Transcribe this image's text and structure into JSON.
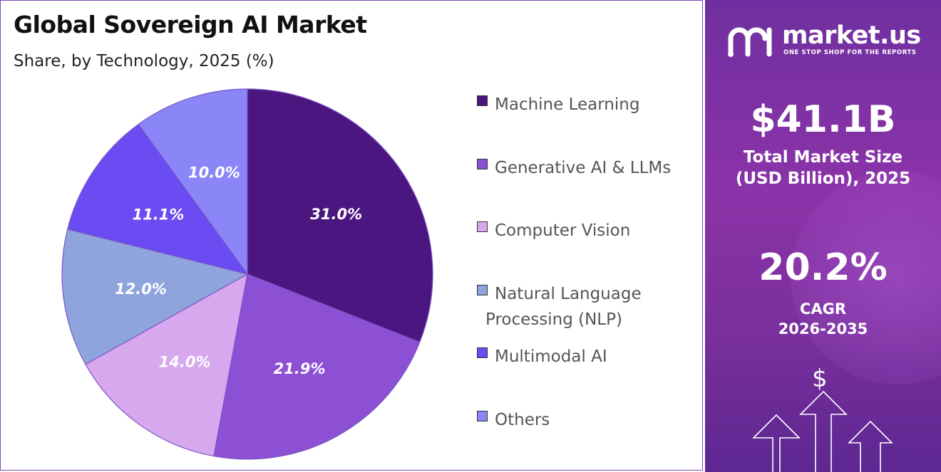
{
  "header": {
    "title": "Global Sovereign AI Market",
    "subtitle": "Share, by Technology, 2025 (%)"
  },
  "chart_data": {
    "type": "pie",
    "title": "Global Sovereign AI Market",
    "subtitle": "Share, by Technology, 2025 (%)",
    "categories": [
      "Machine Learning",
      "Generative AI & LLMs",
      "Computer Vision",
      "Natural Language Processing (NLP)",
      "Multimodal AI",
      "Others"
    ],
    "values": [
      31.0,
      21.9,
      14.0,
      12.0,
      11.1,
      10.0
    ],
    "labels": [
      "31.0%",
      "21.9%",
      "14.0%",
      "12.0%",
      "11.1%",
      "10.0%"
    ],
    "colors": [
      "#4b1680",
      "#8d4fd4",
      "#d7a8ee",
      "#8fa4dc",
      "#6a4cf2",
      "#8a86f7"
    ],
    "legend": "right",
    "start_angle": "12 o'clock",
    "direction": "clockwise"
  },
  "legend": {
    "items": [
      {
        "label": "Machine Learning",
        "color": "#4b1680"
      },
      {
        "label": "Generative AI & LLMs",
        "color": "#8d4fd4"
      },
      {
        "label": "Computer Vision",
        "color": "#d7a8ee"
      },
      {
        "label": "Natural Language Processing (NLP)",
        "color": "#8fa4dc"
      },
      {
        "label": "Multimodal AI",
        "color": "#6a4cf2"
      },
      {
        "label": "Others",
        "color": "#8a86f7"
      }
    ]
  },
  "sidebar": {
    "logo_text": "market.us",
    "logo_tagline": "ONE STOP SHOP FOR THE REPORTS",
    "market_size_value": "$41.1B",
    "market_size_label_1": "Total Market Size",
    "market_size_label_2": "(USD Billion), 2025",
    "cagr_value": "20.2%",
    "cagr_label_1": "CAGR",
    "cagr_label_2": "2026-2035",
    "icons": [
      "dollar-icon",
      "growth-arrows-icon"
    ]
  }
}
